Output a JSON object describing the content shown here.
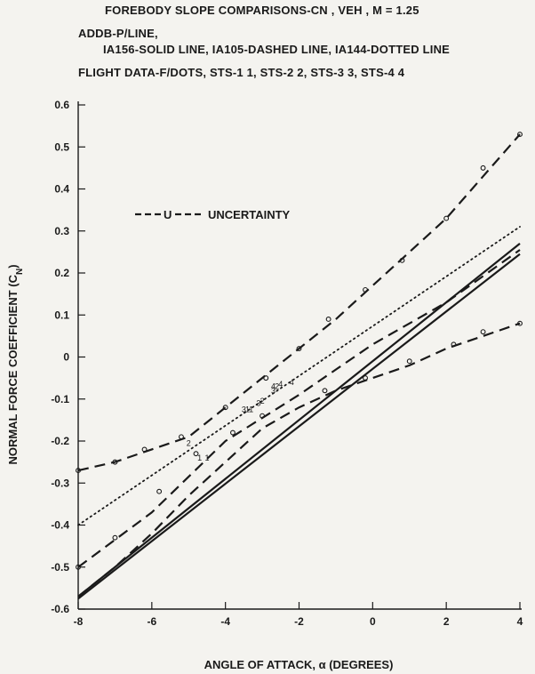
{
  "header": {
    "line1": "FOREBODY SLOPE COMPARISONS-CN , VEH , M = 1.25",
    "line2": "ADDB-P/LINE,",
    "line3": "IA156-SOLID LINE, IA105-DASHED LINE, IA144-DOTTED LINE",
    "line4": "FLIGHT DATA-F/DOTS, STS-1   1, STS-2   2, STS-3   3, STS-4   4"
  },
  "legend": {
    "marker": "U",
    "label": "UNCERTAINTY"
  },
  "chart_data": {
    "type": "line",
    "xlabel": "ANGLE OF ATTACK, α (DEGREES)",
    "ylabel": "NORMAL FORCE COEFFICIENT (C",
    "ylabel_sub": "N",
    "ylabel_end": ")",
    "xlim": [
      -8,
      4
    ],
    "ylim": [
      -0.6,
      0.6
    ],
    "xticks": [
      -8,
      -6,
      -4,
      -2,
      0,
      2,
      4
    ],
    "xtick_labels": [
      "-8",
      "-6",
      "-4",
      "-2",
      "0",
      "2",
      "4"
    ],
    "yticks": [
      0.6,
      0.5,
      0.4,
      0.3,
      0.2,
      0.1,
      0,
      -0.1,
      -0.2,
      -0.3,
      -0.4,
      -0.5,
      -0.6
    ],
    "ytick_labels": [
      "0.6",
      "0.5",
      "0.4",
      "0.3",
      "0.2",
      "0.1",
      "0",
      "-0.1",
      "-0.2",
      "-0.3",
      "-0.4",
      "-0.5",
      "-0.6"
    ],
    "series": [
      {
        "name": "IA156",
        "style": "solid",
        "x": [
          -8,
          4
        ],
        "y": [
          -0.57,
          0.27
        ]
      },
      {
        "name": "IA156",
        "style": "solid",
        "x": [
          -8,
          4
        ],
        "y": [
          -0.575,
          0.245
        ]
      },
      {
        "name": "IA105",
        "style": "dashed",
        "x": [
          -8,
          -6,
          -4,
          -2,
          0,
          2,
          4
        ],
        "y": [
          -0.5,
          -0.37,
          -0.2,
          -0.09,
          0.03,
          0.13,
          0.255
        ]
      },
      {
        "name": "IA144",
        "style": "dotted",
        "x": [
          -8,
          4
        ],
        "y": [
          -0.4,
          0.31
        ]
      },
      {
        "name": "UNCERTAINTY",
        "style": "dashed-upper",
        "x": [
          -8,
          -7,
          -6,
          -5,
          -4,
          -3,
          -2,
          -1,
          0,
          1,
          2,
          3,
          4
        ],
        "y": [
          -0.27,
          -0.25,
          -0.22,
          -0.19,
          -0.12,
          -0.05,
          0.02,
          0.09,
          0.17,
          0.25,
          0.33,
          0.43,
          0.53
        ]
      },
      {
        "name": "UNCERTAINTY",
        "style": "dashed-lower",
        "x": [
          -8,
          -7,
          -6,
          -5,
          -4,
          -3,
          -2,
          -1,
          0,
          1,
          2,
          3,
          4
        ],
        "y": [
          -0.57,
          -0.5,
          -0.42,
          -0.33,
          -0.25,
          -0.17,
          -0.12,
          -0.08,
          -0.05,
          -0.02,
          0.02,
          0.05,
          0.08
        ]
      }
    ],
    "uncertainty_markers": {
      "upper": [
        [
          -8,
          -0.27
        ],
        [
          -7,
          -0.25
        ],
        [
          -6.2,
          -0.22
        ],
        [
          -5.2,
          -0.19
        ],
        [
          -4,
          -0.12
        ],
        [
          -2.9,
          -0.05
        ],
        [
          -2,
          0.02
        ],
        [
          -1.2,
          0.09
        ],
        [
          -0.2,
          0.16
        ],
        [
          0.8,
          0.23
        ],
        [
          2,
          0.33
        ],
        [
          3,
          0.45
        ],
        [
          4,
          0.53
        ]
      ],
      "dashed": [
        [
          -8,
          -0.5
        ],
        [
          -7,
          -0.43
        ],
        [
          -5.8,
          -0.32
        ],
        [
          -4.8,
          -0.23
        ],
        [
          -3.8,
          -0.18
        ],
        [
          -3,
          -0.14
        ],
        [
          -1.3,
          -0.08
        ],
        [
          -0.2,
          -0.05
        ],
        [
          1,
          -0.01
        ],
        [
          2.2,
          0.03
        ],
        [
          3,
          0.06
        ],
        [
          4,
          0.08
        ]
      ]
    },
    "flight_points": [
      {
        "label": "1",
        "x": [
          -4.7,
          -4.5,
          -3.4,
          -3.3
        ],
        "y": [
          -0.24,
          -0.24,
          -0.125,
          -0.125
        ]
      },
      {
        "label": "2",
        "x": [
          -5.0,
          -3.0,
          -2.6
        ],
        "y": [
          -0.205,
          -0.105,
          -0.07
        ]
      },
      {
        "label": "3",
        "x": [
          -3.5,
          -3.1,
          -2.7
        ],
        "y": [
          -0.125,
          -0.11,
          -0.08
        ]
      },
      {
        "label": "4",
        "x": [
          -2.7,
          -2.5,
          -2.2
        ],
        "y": [
          -0.07,
          -0.065,
          -0.06
        ]
      }
    ]
  }
}
